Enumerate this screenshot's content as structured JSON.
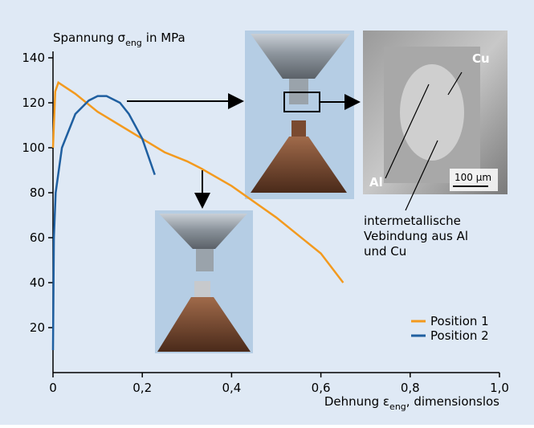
{
  "chart_data": {
    "type": "line",
    "y_label": [
      "Spannung σ",
      "eng",
      "in MPa"
    ],
    "x_label": [
      "Dehnung ε",
      "eng",
      ", dimensionslos"
    ],
    "xlim": [
      0,
      1.0
    ],
    "ylim": [
      0,
      140
    ],
    "xticks": [
      0,
      {
        "value": 0.2,
        "label": "0,2"
      },
      {
        "value": 0.4,
        "label": "0,4"
      },
      {
        "value": 0.6,
        "label": "0,6"
      },
      {
        "value": 0.8,
        "label": "0,8"
      },
      {
        "value": 1.0,
        "label": "1,0"
      }
    ],
    "yticks": [
      20,
      40,
      60,
      80,
      100,
      120,
      140
    ],
    "legend": "lower right",
    "series": [
      {
        "name": "Position 1",
        "color": "#f39a1e",
        "x": [
          0,
          0.005,
          0.012,
          0.05,
          0.1,
          0.15,
          0.2,
          0.25,
          0.3,
          0.33,
          0.4,
          0.5,
          0.6,
          0.65
        ],
        "values": [
          100,
          125,
          129,
          124,
          116,
          110,
          104,
          98,
          94,
          91,
          83,
          69,
          53,
          40
        ]
      },
      {
        "name": "Position 2",
        "color": "#1f5fa0",
        "x": [
          0,
          0.002,
          0.006,
          0.02,
          0.05,
          0.08,
          0.1,
          0.12,
          0.15,
          0.17,
          0.2,
          0.228
        ],
        "values": [
          10,
          60,
          80,
          100,
          115,
          121,
          123,
          123,
          120,
          115,
          104,
          88
        ]
      }
    ],
    "annotations": {
      "cu": "Cu",
      "al": "Al",
      "scale": "100 µm",
      "note": [
        "intermetallische",
        "Vebindung aus Al",
        "und Cu"
      ]
    }
  }
}
